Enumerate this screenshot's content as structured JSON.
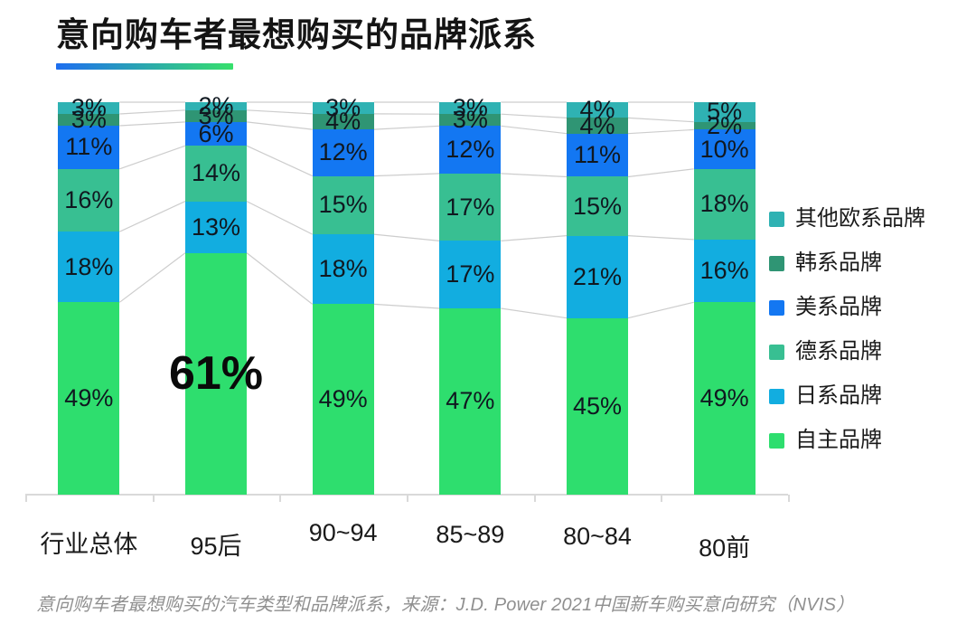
{
  "page": {
    "title": "意向购车者最想购买的品牌派系",
    "caption": "意向购车者最想购买的汽车类型和品牌派系，来源：J.D. Power 2021中国新车购买意向研究（NVIS）"
  },
  "accent": {
    "underline_from": "#1e6ef0",
    "underline_to": "#37e06c",
    "axis_color": "#d9d9d9",
    "connector_color": "#cdcdcd",
    "label_color": "#101820"
  },
  "chart_data": {
    "type": "bar",
    "variant": "stacked-100-percent-column",
    "title": "意向购车者最想购买的品牌派系",
    "xlabel": "",
    "ylabel": "",
    "grid": false,
    "legend_position": "right",
    "connector_lines": true,
    "categories": [
      "行业总体",
      "95后",
      "90~94",
      "85~89",
      "80~84",
      "80前"
    ],
    "series": [
      {
        "name": "其他欧系品牌",
        "color": "#2fb2b3",
        "values": [
          3,
          2,
          3,
          3,
          4,
          5
        ]
      },
      {
        "name": "韩系品牌",
        "color": "#2f9574",
        "values": [
          3,
          3,
          4,
          3,
          4,
          2
        ]
      },
      {
        "name": "美系品牌",
        "color": "#1377f2",
        "values": [
          11,
          6,
          12,
          12,
          11,
          10
        ]
      },
      {
        "name": "德系品牌",
        "color": "#38bf92",
        "values": [
          16,
          14,
          15,
          17,
          15,
          18
        ]
      },
      {
        "name": "日系品牌",
        "color": "#12ade0",
        "values": [
          18,
          13,
          18,
          17,
          21,
          16
        ]
      },
      {
        "name": "自主品牌",
        "color": "#2ede6e",
        "values": [
          49,
          61,
          49,
          47,
          45,
          49
        ]
      }
    ],
    "labels_format": "percent",
    "highlight_label": {
      "category": "95后",
      "series": "自主品牌",
      "text": "61%",
      "style": "large-bold"
    }
  }
}
